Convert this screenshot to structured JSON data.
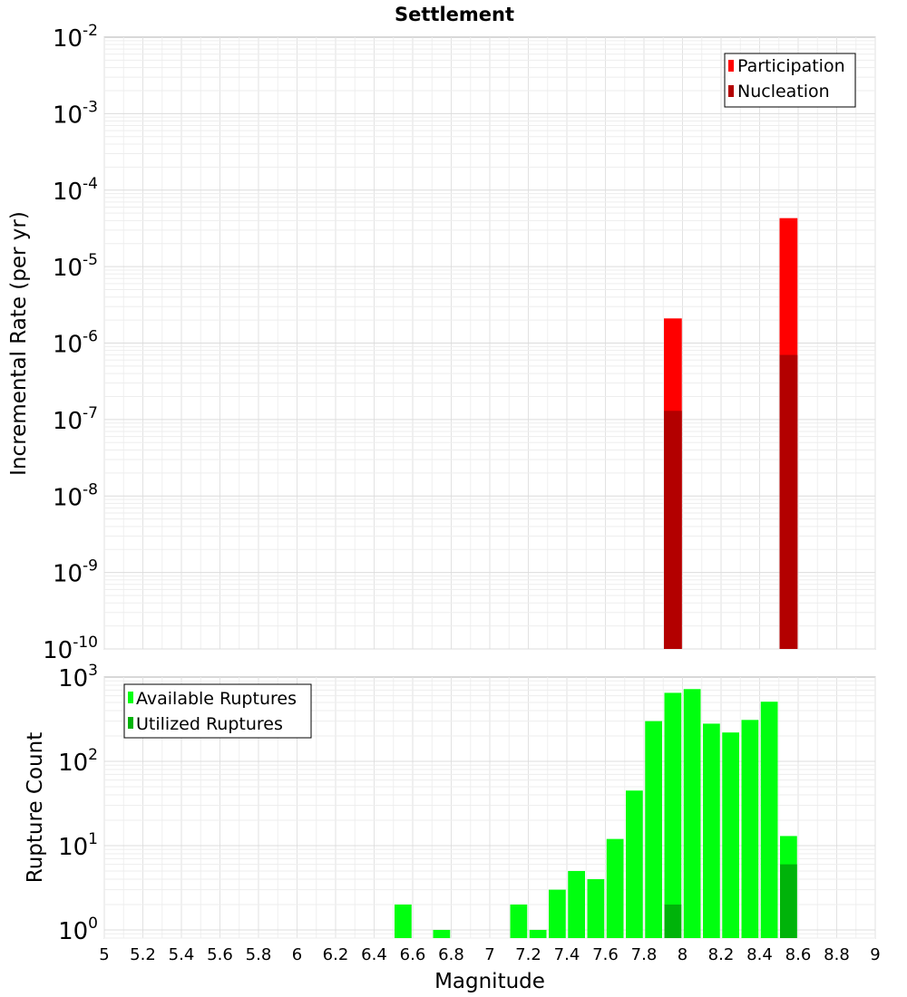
{
  "chart_data": [
    {
      "type": "bar",
      "title": "Settlement",
      "ylabel": "Incremental Rate (per yr)",
      "xlabel": "",
      "yscale": "log",
      "xlim": [
        5,
        9
      ],
      "ylim": [
        1e-10,
        0.01
      ],
      "ytick_labels": [
        {
          "value": 1e-10,
          "base": "10",
          "exp": "-10"
        },
        {
          "value": 1e-09,
          "base": "10",
          "exp": "-9"
        },
        {
          "value": 1e-08,
          "base": "10",
          "exp": "-8"
        },
        {
          "value": 1e-07,
          "base": "10",
          "exp": "-7"
        },
        {
          "value": 1e-06,
          "base": "10",
          "exp": "-6"
        },
        {
          "value": 1e-05,
          "base": "10",
          "exp": "-5"
        },
        {
          "value": 0.0001,
          "base": "10",
          "exp": "-4"
        },
        {
          "value": 0.001,
          "base": "10",
          "exp": "-3"
        },
        {
          "value": 0.01,
          "base": "10",
          "exp": "-2"
        }
      ],
      "grid": true,
      "legend_position": "top-right",
      "bar_width": 0.1,
      "series": [
        {
          "name": "Participation",
          "color": "#ff0000",
          "x": [
            7.95,
            8.55
          ],
          "values": [
            2.1e-06,
            4.3e-05
          ]
        },
        {
          "name": "Nucleation",
          "color": "#b30000",
          "x": [
            7.95,
            8.55
          ],
          "values": [
            1.3e-07,
            7e-07
          ]
        }
      ]
    },
    {
      "type": "bar",
      "title": "",
      "ylabel": "Rupture Count",
      "xlabel": "Magnitude",
      "yscale": "log",
      "xlim": [
        5,
        9
      ],
      "ylim": [
        0.8,
        1000
      ],
      "ytick_labels": [
        {
          "value": 1,
          "base": "10",
          "exp": "0"
        },
        {
          "value": 10,
          "base": "10",
          "exp": "1"
        },
        {
          "value": 100,
          "base": "10",
          "exp": "2"
        },
        {
          "value": 1000,
          "base": "10",
          "exp": "3"
        }
      ],
      "xtick_labels": [
        "5",
        "5.2",
        "5.4",
        "5.6",
        "5.8",
        "6",
        "6.2",
        "6.4",
        "6.6",
        "6.8",
        "7",
        "7.2",
        "7.4",
        "7.6",
        "7.8",
        "8",
        "8.2",
        "8.4",
        "8.6",
        "8.8",
        "9"
      ],
      "grid": true,
      "legend_position": "top-left",
      "bar_width": 0.1,
      "series": [
        {
          "name": "Available Ruptures",
          "color": "#00ff0f",
          "x": [
            6.55,
            6.75,
            7.15,
            7.25,
            7.35,
            7.45,
            7.55,
            7.65,
            7.75,
            7.85,
            7.95,
            8.05,
            8.15,
            8.25,
            8.35,
            8.45,
            8.55
          ],
          "values": [
            2,
            1,
            2,
            1,
            3,
            5,
            4,
            12,
            45,
            300,
            650,
            720,
            280,
            220,
            310,
            510,
            13
          ]
        },
        {
          "name": "Utilized Ruptures",
          "color": "#00b30a",
          "x": [
            7.95,
            8.55
          ],
          "values": [
            2,
            6
          ]
        }
      ]
    }
  ]
}
